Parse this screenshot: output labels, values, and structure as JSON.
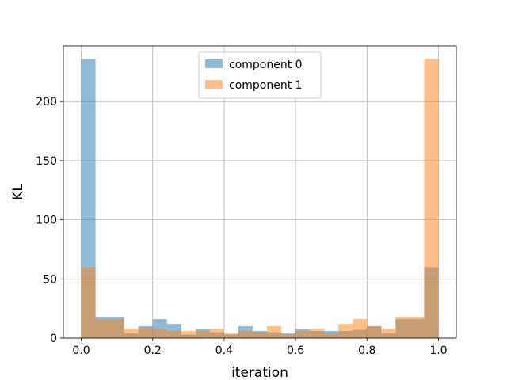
{
  "chart_data": {
    "type": "bar",
    "title": "",
    "xlabel": "iteration",
    "ylabel": "KL",
    "xlim": [
      -0.05,
      1.05
    ],
    "ylim": [
      0,
      247
    ],
    "grid": true,
    "legend_position": "top-center",
    "bin_width": 0.04,
    "bin_starts": [
      0.0,
      0.04,
      0.08,
      0.12,
      0.16,
      0.2,
      0.24,
      0.28,
      0.32,
      0.36,
      0.4,
      0.44,
      0.48,
      0.52,
      0.56,
      0.6,
      0.64,
      0.68,
      0.72,
      0.76,
      0.8,
      0.84,
      0.88,
      0.92,
      0.96
    ],
    "x_ticks": [
      0.0,
      0.2,
      0.4,
      0.6,
      0.8,
      1.0
    ],
    "x_tick_labels": [
      "0.0",
      "0.2",
      "0.4",
      "0.6",
      "0.8",
      "1.0"
    ],
    "y_ticks": [
      0,
      50,
      100,
      150,
      200
    ],
    "y_tick_labels": [
      "0",
      "50",
      "100",
      "150",
      "200"
    ],
    "series": [
      {
        "name": "component 0",
        "color": "#1f77b4",
        "values": [
          236,
          18,
          18,
          4,
          10,
          16,
          12,
          3,
          8,
          5,
          3,
          10,
          6,
          5,
          4,
          8,
          6,
          6,
          6,
          7,
          10,
          4,
          16,
          16,
          60
        ]
      },
      {
        "name": "component 1",
        "color": "#ff7f0e",
        "values": [
          60,
          16,
          16,
          8,
          9,
          8,
          6,
          6,
          6,
          8,
          4,
          6,
          5,
          10,
          3,
          6,
          8,
          4,
          12,
          16,
          10,
          8,
          18,
          18,
          236
        ]
      }
    ]
  }
}
